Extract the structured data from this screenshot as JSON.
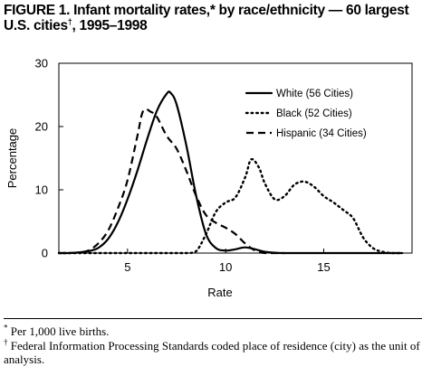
{
  "figure": {
    "title_line1": "FIGURE 1. Infant mortality rates,* by race/ethnicity — 60 largest",
    "title_line2_prefix": "U.S. cities",
    "title_dagger": "†",
    "title_line2_suffix": ", 1995–1998"
  },
  "chart_data": {
    "type": "line",
    "title": "",
    "xlabel": "Rate",
    "ylabel": "Percentage",
    "xlim": [
      1.5,
      19.5
    ],
    "ylim": [
      0,
      30
    ],
    "xticks": [
      5,
      10,
      15
    ],
    "yticks": [
      0,
      10,
      20,
      30
    ],
    "grid": false,
    "legend_position": "top-right",
    "series": [
      {
        "name": "White (56 Cities)",
        "style": "solid",
        "color": "#000000",
        "points": [
          [
            1.5,
            0
          ],
          [
            2.0,
            0
          ],
          [
            2.5,
            0.1
          ],
          [
            3.0,
            0.3
          ],
          [
            3.5,
            0.8
          ],
          [
            4.0,
            2.2
          ],
          [
            4.5,
            4.8
          ],
          [
            5.0,
            8.5
          ],
          [
            5.5,
            13.0
          ],
          [
            6.0,
            18.0
          ],
          [
            6.5,
            22.5
          ],
          [
            7.0,
            25.2
          ],
          [
            7.2,
            25.3
          ],
          [
            7.5,
            23.5
          ],
          [
            8.0,
            17.0
          ],
          [
            8.5,
            9.0
          ],
          [
            9.0,
            3.0
          ],
          [
            9.5,
            0.8
          ],
          [
            10.0,
            0.4
          ],
          [
            10.5,
            0.6
          ],
          [
            11.0,
            0.9
          ],
          [
            11.5,
            0.6
          ],
          [
            12.0,
            0.2
          ],
          [
            12.5,
            0.05
          ],
          [
            13.0,
            0
          ],
          [
            14.0,
            0
          ],
          [
            16.0,
            0
          ],
          [
            18.0,
            0
          ],
          [
            19.0,
            0
          ]
        ]
      },
      {
        "name": "Black (52 Cities)",
        "style": "dotted",
        "color": "#000000",
        "points": [
          [
            1.5,
            0
          ],
          [
            4.0,
            0
          ],
          [
            6.0,
            0
          ],
          [
            8.0,
            0
          ],
          [
            8.5,
            0.3
          ],
          [
            9.0,
            3.0
          ],
          [
            9.5,
            6.5
          ],
          [
            10.0,
            8.0
          ],
          [
            10.5,
            8.8
          ],
          [
            11.0,
            12.0
          ],
          [
            11.3,
            14.8
          ],
          [
            11.7,
            13.5
          ],
          [
            12.0,
            11.0
          ],
          [
            12.5,
            8.5
          ],
          [
            13.0,
            9.0
          ],
          [
            13.5,
            10.8
          ],
          [
            14.0,
            11.3
          ],
          [
            14.5,
            10.5
          ],
          [
            15.0,
            9.0
          ],
          [
            15.5,
            8.0
          ],
          [
            16.0,
            6.8
          ],
          [
            16.5,
            5.5
          ],
          [
            17.0,
            2.5
          ],
          [
            17.5,
            0.8
          ],
          [
            18.0,
            0.2
          ],
          [
            18.5,
            0
          ],
          [
            19.0,
            0
          ]
        ]
      },
      {
        "name": "Hispanic (34 Cities)",
        "style": "dashed",
        "color": "#000000",
        "points": [
          [
            1.5,
            0
          ],
          [
            2.0,
            0
          ],
          [
            2.5,
            0.1
          ],
          [
            3.0,
            0.4
          ],
          [
            3.5,
            1.5
          ],
          [
            4.0,
            3.5
          ],
          [
            4.5,
            7.0
          ],
          [
            5.0,
            11.5
          ],
          [
            5.5,
            18.5
          ],
          [
            5.8,
            22.5
          ],
          [
            6.2,
            22.3
          ],
          [
            6.5,
            21.5
          ],
          [
            7.0,
            18.5
          ],
          [
            7.5,
            16.5
          ],
          [
            8.0,
            13.0
          ],
          [
            8.5,
            9.0
          ],
          [
            9.0,
            6.0
          ],
          [
            9.5,
            4.8
          ],
          [
            10.0,
            4.0
          ],
          [
            10.5,
            3.0
          ],
          [
            11.0,
            1.5
          ],
          [
            11.5,
            0.4
          ],
          [
            12.0,
            0
          ],
          [
            13.0,
            0
          ]
        ]
      }
    ]
  },
  "footnotes": {
    "note1_mark": "*",
    "note1_text": " Per 1,000 live births.",
    "note2_mark": "†",
    "note2_text": " Federal Information Processing Standards coded place of residence (city) as the unit of analysis."
  }
}
